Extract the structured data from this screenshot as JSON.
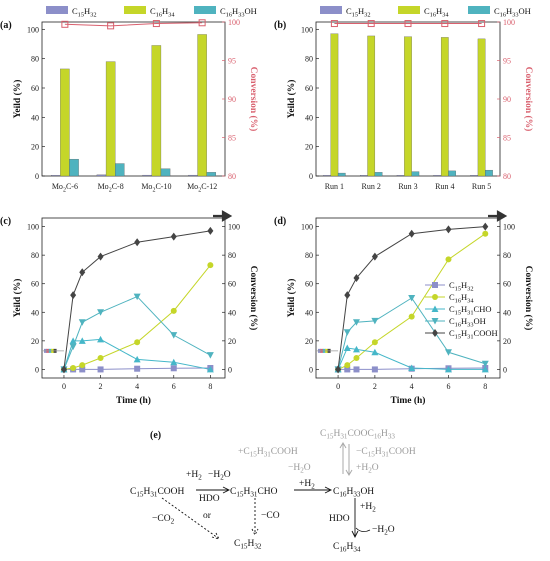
{
  "colors": {
    "c15h32": "#8c8fc9",
    "c16h34": "#c5d629",
    "c16h33oh": "#4fb3bf",
    "conversion": "#d9606e",
    "c15h31cho": "#45b7c9",
    "c16h33oh_line": "#d7e216",
    "c15h31cooh": "#444444"
  },
  "legend": {
    "c15h32": "C15H32",
    "c16h34": "C16H34",
    "c16h33oh": "C16H33OH",
    "c15h31cho": "C15H31CHO",
    "c15h31cooh": "C15H31COOH"
  },
  "chart_data": [
    {
      "panel": "(a)",
      "type": "bar",
      "categories": [
        "Mo2C-6",
        "Mo2C-8",
        "Mo2C-10",
        "Mo2C-12"
      ],
      "series": [
        {
          "name": "C15H32",
          "values": [
            0.5,
            0.8,
            0.6,
            0.6
          ]
        },
        {
          "name": "C16H34",
          "values": [
            73,
            78,
            89,
            96.5
          ]
        },
        {
          "name": "C16H33OH",
          "values": [
            11.5,
            8.5,
            5,
            2.5
          ]
        }
      ],
      "conversion": [
        99.7,
        99.5,
        99.8,
        99.9
      ],
      "ylabel": "Yeild (%)",
      "y2label": "Conversion (%)",
      "ylim": [
        0,
        105
      ],
      "y2lim": [
        80,
        100
      ],
      "yticks": [
        0,
        20,
        40,
        60,
        80,
        100
      ],
      "y2ticks": [
        80,
        85,
        90,
        95,
        100
      ]
    },
    {
      "panel": "(b)",
      "type": "bar",
      "categories": [
        "Run 1",
        "Run 2",
        "Run 3",
        "Run 4",
        "Run 5"
      ],
      "series": [
        {
          "name": "C15H32",
          "values": [
            0.5,
            0.5,
            0.5,
            0.5,
            0.5
          ]
        },
        {
          "name": "C16H34",
          "values": [
            97,
            95.5,
            95,
            94.5,
            93.5
          ]
        },
        {
          "name": "C16H33OH",
          "values": [
            2,
            2.5,
            3,
            3.5,
            4
          ]
        }
      ],
      "conversion": [
        99.8,
        99.8,
        99.8,
        99.8,
        99.8
      ],
      "ylabel": "Yeild (%)",
      "y2label": "Conversion (%)",
      "ylim": [
        0,
        105
      ],
      "y2lim": [
        80,
        100
      ],
      "yticks": [
        0,
        20,
        40,
        60,
        80,
        100
      ],
      "y2ticks": [
        80,
        85,
        90,
        95,
        100
      ]
    },
    {
      "panel": "(c)",
      "type": "line",
      "x": [
        0,
        0.5,
        1,
        2,
        4,
        6,
        8
      ],
      "series": [
        {
          "name": "C15H32",
          "values": [
            0,
            0,
            0,
            0,
            0.5,
            0.8,
            1
          ]
        },
        {
          "name": "C16H34",
          "values": [
            0,
            1,
            3,
            8,
            19,
            41,
            73
          ]
        },
        {
          "name": "C15H31CHO",
          "values": [
            0,
            20,
            20,
            21,
            7,
            5,
            0
          ]
        },
        {
          "name": "C16H33OH",
          "values": [
            0,
            16,
            33,
            40,
            51,
            24,
            10
          ]
        },
        {
          "name": "C15H31COOH",
          "values": [
            0,
            52,
            68,
            79,
            89,
            93,
            97
          ]
        }
      ],
      "xlabel": "Time (h)",
      "ylabel": "Yeild (%)",
      "y2label": "Conversion (%)",
      "xlim": [
        -1.2,
        8.8
      ],
      "ylim": [
        -6,
        106
      ],
      "y2lim": [
        -6,
        106
      ],
      "xticks": [
        0,
        2,
        4,
        6,
        8
      ],
      "yticks": [
        0,
        20,
        40,
        60,
        80,
        100
      ],
      "y2ticks": [
        0,
        20,
        40,
        60,
        80,
        100
      ]
    },
    {
      "panel": "(d)",
      "type": "line",
      "x": [
        0,
        0.5,
        1,
        2,
        4,
        6,
        8
      ],
      "series": [
        {
          "name": "C15H32",
          "values": [
            0,
            0,
            0,
            0,
            0.5,
            0.8,
            1
          ]
        },
        {
          "name": "C16H34",
          "values": [
            0,
            3,
            8,
            19,
            37,
            77,
            95
          ]
        },
        {
          "name": "C15H31CHO",
          "values": [
            0,
            15,
            14,
            12,
            1,
            0,
            0
          ]
        },
        {
          "name": "C16H33OH",
          "values": [
            0,
            26,
            33,
            34,
            50,
            12,
            4
          ]
        },
        {
          "name": "C15H31COOH",
          "values": [
            0,
            52,
            64,
            79,
            95,
            98,
            100
          ]
        }
      ],
      "xlabel": "Time (h)",
      "ylabel": "Yeild (%)",
      "y2label": "Conversion (%)",
      "xlim": [
        -1.2,
        8.8
      ],
      "ylim": [
        -6,
        106
      ],
      "y2lim": [
        -6,
        106
      ],
      "xticks": [
        0,
        2,
        4,
        6,
        8
      ],
      "yticks": [
        0,
        20,
        40,
        60,
        80,
        100
      ],
      "y2ticks": [
        0,
        20,
        40,
        60,
        80,
        100
      ]
    }
  ],
  "scheme": {
    "panel": "(e)",
    "ester": "C15H31COOC16H33",
    "plus_acid": "+C15H31COOH",
    "minus_acid": "−C15H31COOH",
    "minus_h2o": "−H2O",
    "plus_h2o": "+H2O",
    "acid": "C15H31COOH",
    "plus_h2": "+H2",
    "hdo": "HDO",
    "aldehyde": "C15H31CHO",
    "alcohol": "C16H33OH",
    "minus_co2": "−CO2",
    "or": "or",
    "minus_co": "−CO",
    "c15h32": "C15H32",
    "c16h34": "C16H34"
  }
}
